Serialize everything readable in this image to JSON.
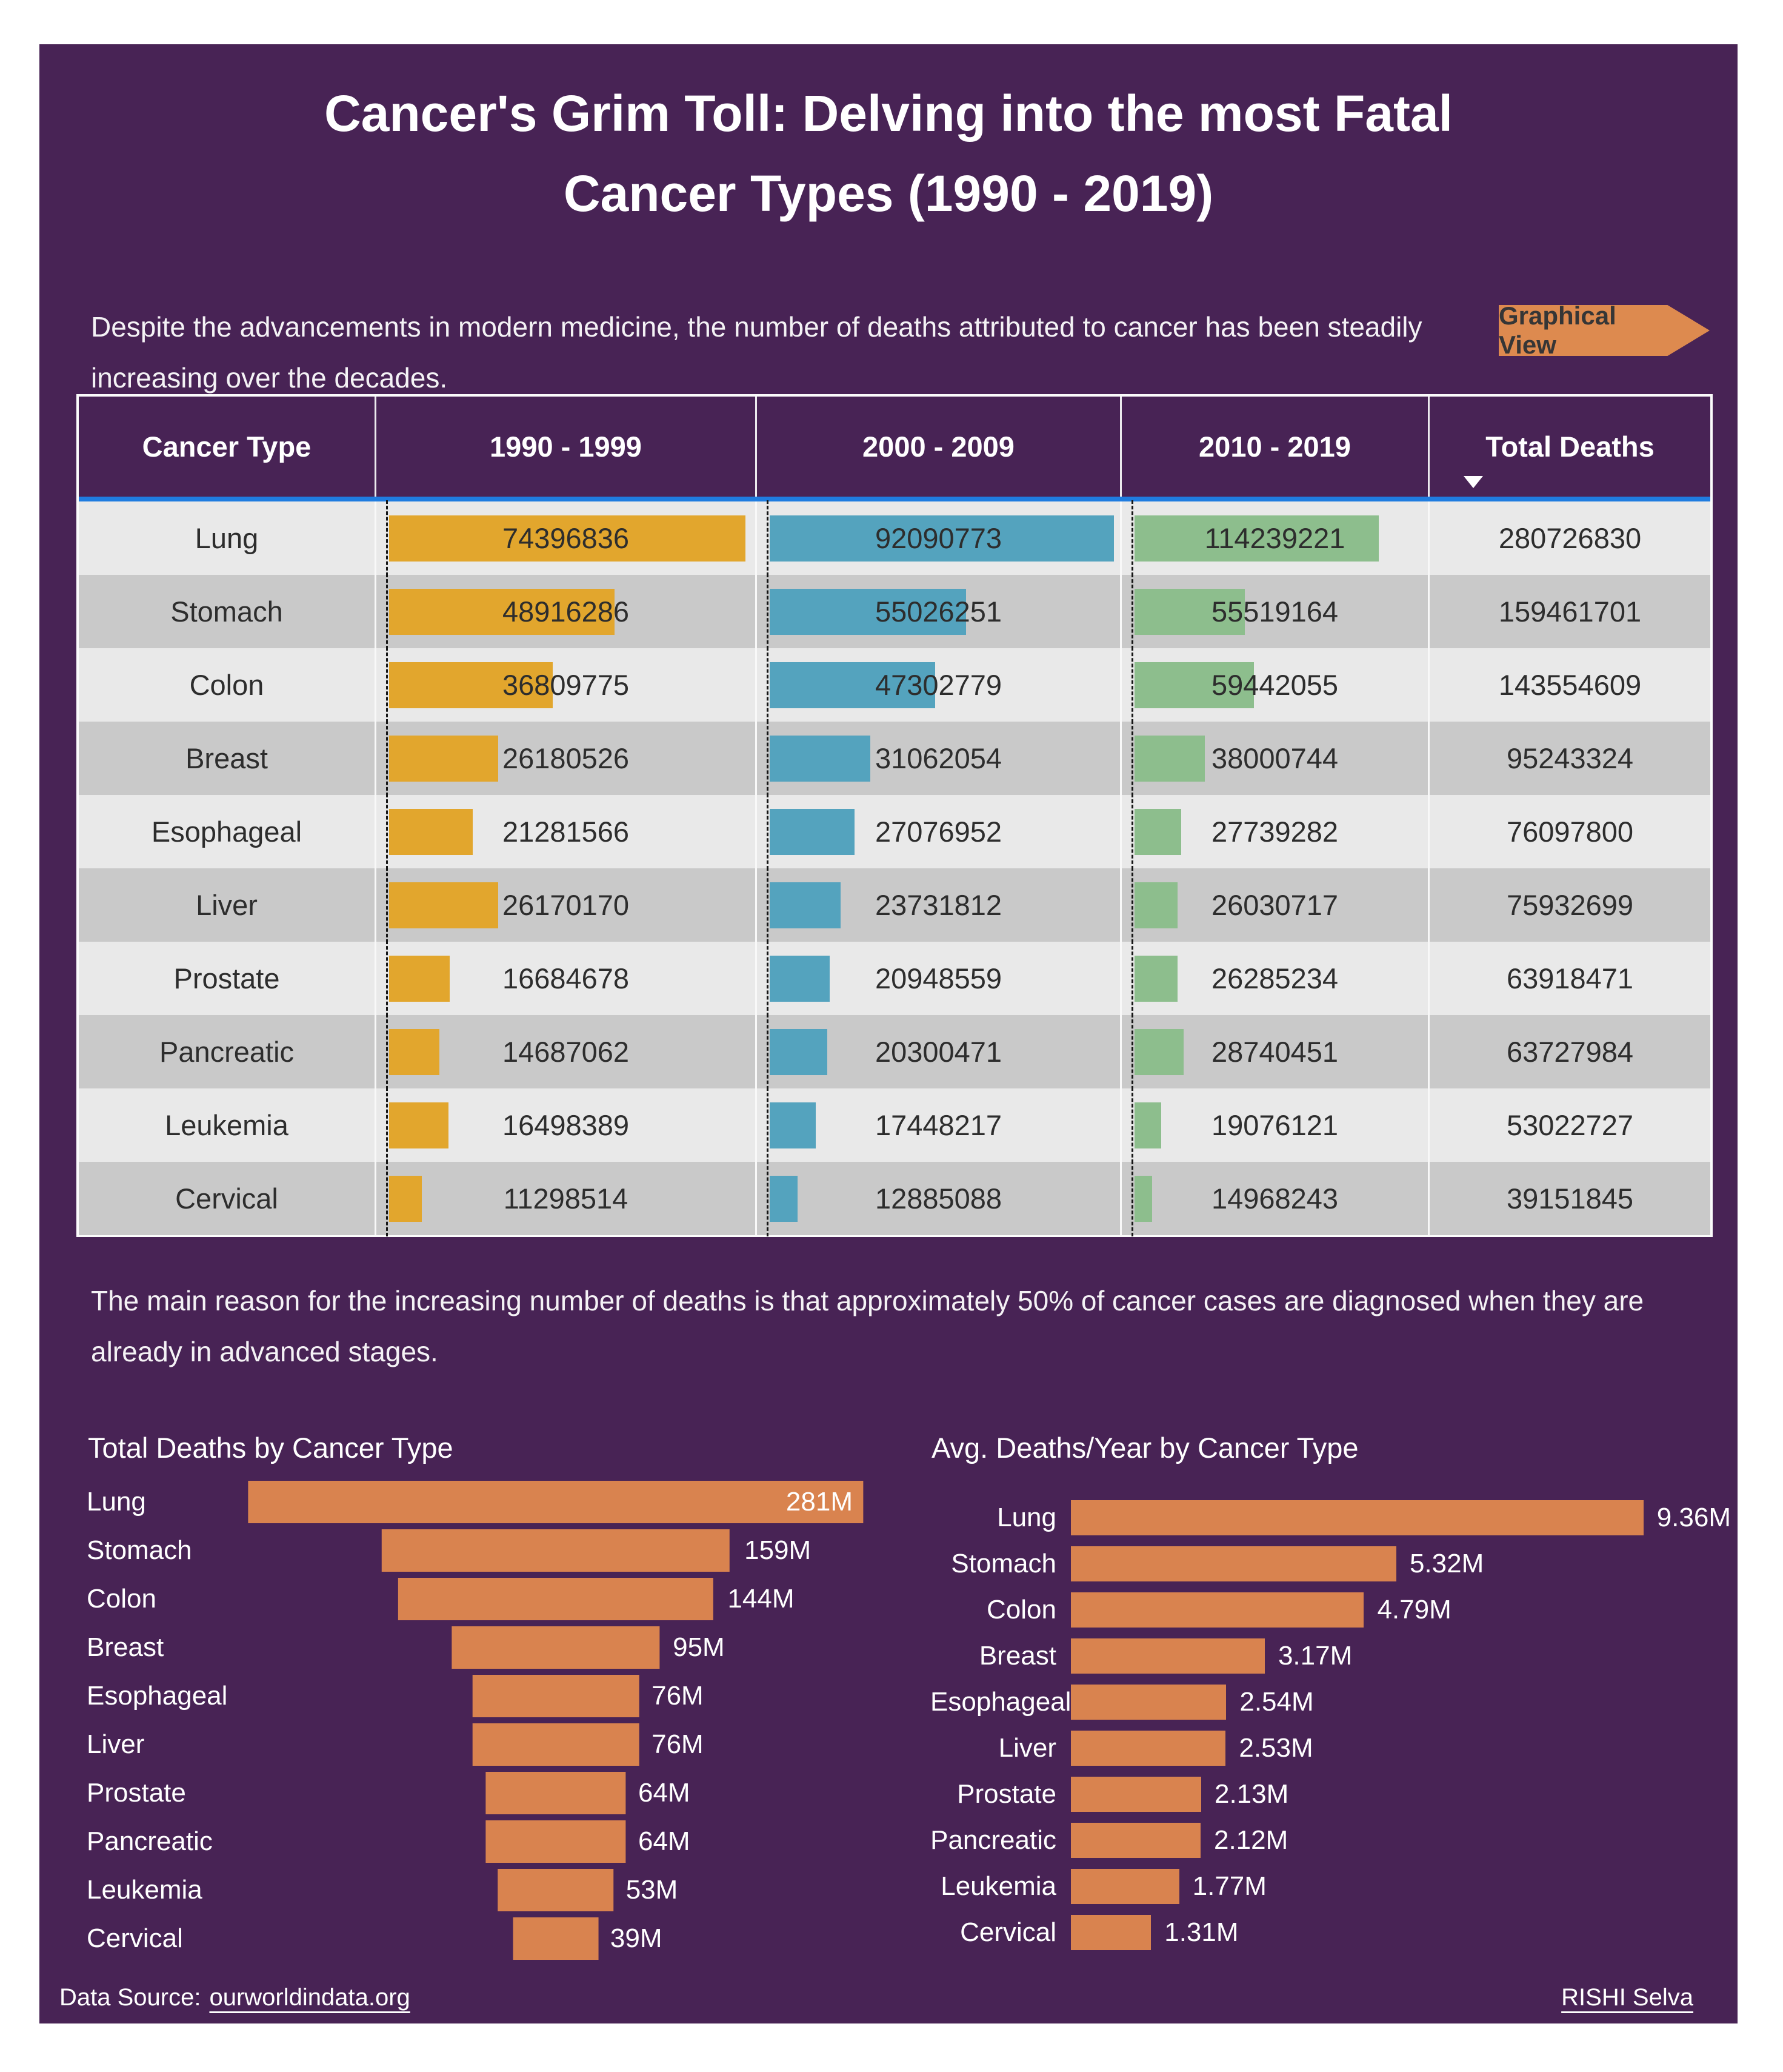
{
  "page": {
    "title_line1": "Cancer's Grim Toll: Delving into the most Fatal",
    "title_line2": "Cancer Types (1990 - 2019)",
    "subtitle": "Despite the advancements in modern medicine, the number of deaths attributed to cancer has been steadily increasing over the decades.",
    "graphical_view_label": "Graphical View",
    "note": "The main reason for the increasing number of deaths is that approximately 50% of cancer cases are diagnosed when they are already in advanced stages.",
    "colors": {
      "panel": "#482355",
      "header_underline": "#1F7CE0",
      "row_light": "#E9E9E9",
      "row_dark": "#C9C9C9",
      "bar_1990s": "#E2A62D",
      "bar_2000s": "#54A3BE",
      "bar_2010s": "#8DBE8D",
      "chart_orange": "#D9834F",
      "button_orange": "#DD8A4F"
    }
  },
  "chart_data": [
    {
      "type": "table",
      "columns": [
        "Cancer Type",
        "1990 - 1999",
        "2000 - 2009",
        "2010 - 2019",
        "Total Deaths"
      ],
      "sort": {
        "column": "Total Deaths",
        "direction": "desc"
      },
      "bar_colors": [
        "#E2A62D",
        "#54A3BE",
        "#8DBE8D"
      ],
      "rows": [
        [
          "Lung",
          74396836,
          92090773,
          114239221,
          280726830
        ],
        [
          "Stomach",
          48916286,
          55026251,
          55519164,
          159461701
        ],
        [
          "Colon",
          36809775,
          47302779,
          59442055,
          143554609
        ],
        [
          "Breast",
          26180526,
          31062054,
          38000744,
          95243324
        ],
        [
          "Esophageal",
          21281566,
          27076952,
          27739282,
          76097800
        ],
        [
          "Liver",
          26170170,
          23731812,
          26030717,
          75932699
        ],
        [
          "Prostate",
          16684678,
          20948559,
          26285234,
          63918471
        ],
        [
          "Pancreatic",
          14687062,
          20300471,
          28740451,
          63727984
        ],
        [
          "Leukemia",
          16498389,
          17448217,
          19076121,
          53022727
        ],
        [
          "Cervical",
          11298514,
          12885088,
          14968243,
          39151845
        ]
      ]
    },
    {
      "type": "funnel",
      "title": "Total Deaths by Cancer Type",
      "orientation": "horizontal-centered",
      "categories": [
        "Lung",
        "Stomach",
        "Colon",
        "Breast",
        "Esophageal",
        "Liver",
        "Prostate",
        "Pancreatic",
        "Leukemia",
        "Cervical"
      ],
      "values_millions": [
        281,
        159,
        144,
        95,
        76,
        76,
        64,
        64,
        53,
        39
      ],
      "labels": [
        "281M",
        "159M",
        "144M",
        "95M",
        "76M",
        "76M",
        "64M",
        "64M",
        "53M",
        "39M"
      ],
      "bar_color": "#D9834F",
      "legend": "none"
    },
    {
      "type": "bar",
      "title": "Avg. Deaths/Year by Cancer Type",
      "orientation": "horizontal",
      "categories": [
        "Lung",
        "Stomach",
        "Colon",
        "Breast",
        "Esophageal",
        "Liver",
        "Prostate",
        "Pancreatic",
        "Leukemia",
        "Cervical"
      ],
      "values_millions": [
        9.36,
        5.32,
        4.79,
        3.17,
        2.54,
        2.53,
        2.13,
        2.12,
        1.77,
        1.31
      ],
      "labels": [
        "9.36M",
        "5.32M",
        "4.79M",
        "3.17M",
        "2.54M",
        "2.53M",
        "2.13M",
        "2.12M",
        "1.77M",
        "1.31M"
      ],
      "bar_color": "#D9834F",
      "legend": "none"
    }
  ],
  "footer": {
    "source_label": "Data Source:",
    "source_link": "ourworldindata.org",
    "author": "RISHI Selva"
  }
}
